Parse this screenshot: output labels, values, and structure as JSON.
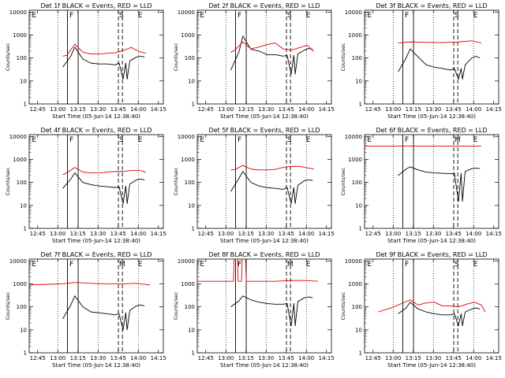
{
  "page": {
    "background": "#ffffff"
  },
  "colors": {
    "events": "#000000",
    "lld": "#e00000",
    "axis": "#000000"
  },
  "chart_data": [
    {
      "type": "line",
      "title": "Det 1f BLACK = Events, RED = LLD",
      "xlabel": "Start Time (05-Jun-14 12:38:40)",
      "ylabel": "Counts/sec",
      "xticks": [
        "12:45",
        "13:00",
        "13:15",
        "13:30",
        "13:45",
        "14:00",
        "14:15"
      ],
      "yticks": [
        "1",
        "10",
        "100",
        "1000",
        "10000"
      ],
      "yscale": "log",
      "ylim": [
        1,
        12000
      ],
      "flags": [
        "E",
        "F",
        "S",
        "E"
      ],
      "series": [
        {
          "color": "#000000",
          "x": [
            25,
            31,
            34,
            40,
            46,
            52,
            58,
            64,
            67,
            70,
            72,
            73,
            75,
            80,
            83,
            86,
            87
          ],
          "y": [
            40,
            120,
            300,
            90,
            60,
            55,
            55,
            50,
            60,
            12,
            60,
            12,
            75,
            110,
            120,
            110,
            null
          ]
        },
        {
          "color": "#e00000",
          "x": [
            25,
            28,
            34,
            40,
            46,
            52,
            58,
            64,
            70,
            76,
            82,
            87
          ],
          "y": [
            120,
            130,
            400,
            180,
            150,
            150,
            160,
            170,
            210,
            290,
            190,
            160
          ]
        }
      ]
    },
    {
      "type": "line",
      "title": "Det 2f BLACK = Events, RED = LLD",
      "xlabel": "Start Time (05-Jun-14 12:38:40)",
      "ylabel": "Counts/sec",
      "xticks": [
        "12:45",
        "13:00",
        "13:15",
        "13:30",
        "13:45",
        "14:00",
        "14:15"
      ],
      "yticks": [
        "1",
        "10",
        "100",
        "1000",
        "10000"
      ],
      "yscale": "log",
      "ylim": [
        1,
        12000
      ],
      "flags": [
        "E",
        "F",
        "S",
        "E"
      ],
      "series": [
        {
          "color": "#000000",
          "x": [
            25,
            31,
            34,
            40,
            46,
            52,
            58,
            64,
            67,
            70,
            72,
            73,
            75,
            80,
            83,
            86,
            87
          ],
          "y": [
            30,
            180,
            900,
            240,
            200,
            140,
            140,
            120,
            130,
            20,
            130,
            20,
            150,
            220,
            260,
            240,
            null
          ]
        },
        {
          "color": "#e00000",
          "x": [
            25,
            28,
            34,
            40,
            46,
            52,
            58,
            64,
            70,
            76,
            82,
            87
          ],
          "y": [
            180,
            220,
            500,
            250,
            300,
            380,
            450,
            250,
            220,
            280,
            360,
            190
          ]
        }
      ]
    },
    {
      "type": "line",
      "title": "Det 3f BLACK = Events, RED = LLD",
      "xlabel": "Start Time (05-Jun-14 12:38:40)",
      "ylabel": "Counts/sec",
      "xticks": [
        "12:45",
        "13:00",
        "13:15",
        "13:30",
        "13:45",
        "14:00",
        "14:15"
      ],
      "yticks": [
        "1",
        "10",
        "100",
        "1000",
        "10000"
      ],
      "yscale": "log",
      "ylim": [
        1,
        12000
      ],
      "flags": [
        "E",
        "F",
        "S",
        "E"
      ],
      "series": [
        {
          "color": "#000000",
          "x": [
            25,
            31,
            34,
            40,
            46,
            52,
            58,
            64,
            67,
            70,
            72,
            73,
            75,
            80,
            83,
            86,
            87
          ],
          "y": [
            25,
            100,
            250,
            110,
            50,
            40,
            35,
            30,
            35,
            12,
            35,
            12,
            50,
            100,
            120,
            100,
            null
          ]
        },
        {
          "color": "#e00000",
          "x": [
            25,
            34,
            46,
            58,
            70,
            80,
            87
          ],
          "y": [
            450,
            500,
            480,
            470,
            500,
            560,
            450
          ]
        }
      ]
    },
    {
      "type": "line",
      "title": "Det 4f BLACK = Events, RED = LLD",
      "xlabel": "Start Time (05-Jun-14 12:38:40)",
      "ylabel": "Counts/sec",
      "xticks": [
        "12:45",
        "13:00",
        "13:15",
        "13:30",
        "13:45",
        "14:00",
        "14:15"
      ],
      "yticks": [
        "1",
        "10",
        "100",
        "1000",
        "10000"
      ],
      "yscale": "log",
      "ylim": [
        1,
        12000
      ],
      "flags": [
        "E",
        "F",
        "S",
        "E"
      ],
      "series": [
        {
          "color": "#000000",
          "x": [
            25,
            31,
            34,
            40,
            46,
            52,
            58,
            64,
            67,
            70,
            72,
            73,
            75,
            80,
            83,
            86,
            87
          ],
          "y": [
            55,
            140,
            260,
            100,
            80,
            70,
            65,
            60,
            65,
            12,
            70,
            12,
            85,
            130,
            140,
            130,
            null
          ]
        },
        {
          "color": "#e00000",
          "x": [
            25,
            28,
            34,
            40,
            46,
            52,
            58,
            64,
            70,
            76,
            82,
            87
          ],
          "y": [
            220,
            260,
            450,
            280,
            260,
            260,
            280,
            300,
            300,
            330,
            340,
            280
          ]
        }
      ]
    },
    {
      "type": "line",
      "title": "Det 5f BLACK = Events, RED = LLD",
      "xlabel": "Start Time (05-Jun-14 12:38:40)",
      "ylabel": "Counts/sec",
      "xticks": [
        "12:45",
        "13:00",
        "13:15",
        "13:30",
        "13:45",
        "14:00",
        "14:15"
      ],
      "yticks": [
        "1",
        "10",
        "100",
        "1000",
        "10000"
      ],
      "yscale": "log",
      "ylim": [
        1,
        12000
      ],
      "flags": [
        "E",
        "F",
        "S",
        "E"
      ],
      "series": [
        {
          "color": "#000000",
          "x": [
            25,
            31,
            34,
            40,
            46,
            52,
            58,
            64,
            67,
            70,
            72,
            73,
            75,
            80,
            83,
            86,
            87
          ],
          "y": [
            40,
            150,
            300,
            100,
            70,
            60,
            55,
            50,
            60,
            12,
            60,
            12,
            75,
            120,
            130,
            120,
            null
          ]
        },
        {
          "color": "#e00000",
          "x": [
            25,
            28,
            34,
            40,
            46,
            52,
            58,
            64,
            70,
            76,
            82,
            87
          ],
          "y": [
            350,
            360,
            550,
            380,
            350,
            350,
            370,
            450,
            500,
            500,
            430,
            380
          ]
        }
      ]
    },
    {
      "type": "line",
      "title": "Det 6f BLACK = Events, RED = LLD",
      "xlabel": "Start Time (05-Jun-14 12:38:40)",
      "ylabel": "Counts/sec",
      "xticks": [
        "12:45",
        "13:00",
        "13:15",
        "13:30",
        "13:45",
        "14:00",
        "14:15"
      ],
      "yticks": [
        "1",
        "10",
        "100",
        "1000",
        "10000"
      ],
      "yscale": "log",
      "ylim": [
        1,
        12000
      ],
      "flags": [
        "E",
        "F",
        "M",
        "E"
      ],
      "series": [
        {
          "color": "#000000",
          "x": [
            25,
            31,
            34,
            40,
            46,
            52,
            58,
            64,
            67,
            70,
            72,
            73,
            75,
            80,
            83,
            86,
            87
          ],
          "y": [
            200,
            380,
            480,
            350,
            280,
            260,
            250,
            240,
            250,
            15,
            250,
            15,
            300,
            400,
            420,
            400,
            null
          ]
        },
        {
          "color": "#e00000",
          "x": [
            0,
            87
          ],
          "y": [
            3800,
            3800
          ]
        }
      ]
    },
    {
      "type": "line",
      "title": "Det 7f BLACK = Events, RED = LLD",
      "xlabel": "Start Time (05-Jun-14 12:38:40)",
      "ylabel": "Counts/sec",
      "xticks": [
        "12:45",
        "13:00",
        "13:15",
        "13:30",
        "13:45",
        "14:00",
        "14:15"
      ],
      "yticks": [
        "1",
        "10",
        "100",
        "1000",
        "10000"
      ],
      "yscale": "log",
      "ylim": [
        1,
        12000
      ],
      "flags": [
        "E",
        "F",
        "M",
        "E"
      ],
      "series": [
        {
          "color": "#000000",
          "x": [
            25,
            31,
            34,
            40,
            46,
            52,
            58,
            64,
            67,
            70,
            72,
            73,
            75,
            80,
            83,
            86,
            87
          ],
          "y": [
            30,
            120,
            300,
            100,
            60,
            55,
            50,
            45,
            50,
            10,
            55,
            10,
            70,
            110,
            120,
            110,
            null
          ]
        },
        {
          "color": "#e00000",
          "x": [
            0,
            12,
            25,
            34,
            46,
            58,
            70,
            80,
            90
          ],
          "y": [
            900,
            950,
            1000,
            1150,
            1050,
            1000,
            1000,
            1050,
            900
          ]
        }
      ]
    },
    {
      "type": "line",
      "title": "Det 8f BLACK = Events, RED = LLD",
      "xlabel": "Start Time (05-Jun-14 12:38:40)",
      "ylabel": "Counts/sec",
      "xticks": [
        "12:45",
        "13:00",
        "13:15",
        "13:30",
        "13:45",
        "14:00",
        "14:15"
      ],
      "yticks": [
        "1",
        "10",
        "100",
        "1000",
        "10000"
      ],
      "yscale": "log",
      "ylim": [
        1,
        12000
      ],
      "flags": [
        "E",
        "F",
        "M",
        "E"
      ],
      "series": [
        {
          "color": "#000000",
          "x": [
            25,
            31,
            34,
            40,
            46,
            52,
            58,
            64,
            67,
            70,
            72,
            73,
            75,
            80,
            83,
            86,
            87
          ],
          "y": [
            100,
            180,
            300,
            200,
            160,
            140,
            130,
            130,
            140,
            15,
            140,
            15,
            170,
            250,
            270,
            250,
            null
          ]
        },
        {
          "color": "#e00000",
          "x": [
            0,
            25,
            27,
            27.5,
            30,
            30.5,
            33,
            33.5,
            36,
            36.5,
            46,
            58,
            70,
            80,
            90
          ],
          "y": [
            1300,
            1300,
            1300,
            12000,
            12000,
            1300,
            1300,
            12000,
            12000,
            1300,
            1300,
            1300,
            1400,
            1400,
            1300
          ]
        }
      ]
    },
    {
      "type": "line",
      "title": "Det 9f BLACK = Events, RED = LLD",
      "xlabel": "Start Time (05-Jun-14 12:38:40)",
      "ylabel": "Counts/sec",
      "xticks": [
        "12:45",
        "13:00",
        "13:15",
        "13:30",
        "13:45",
        "14:00",
        "14:15"
      ],
      "yticks": [
        "1",
        "10",
        "100",
        "1000",
        "10000"
      ],
      "yscale": "log",
      "ylim": [
        1,
        12000
      ],
      "flags": [
        "E",
        "F",
        "S",
        "E"
      ],
      "series": [
        {
          "color": "#000000",
          "x": [
            25,
            31,
            34,
            40,
            46,
            52,
            58,
            64,
            67,
            70,
            72,
            73,
            75,
            80,
            83,
            86,
            87
          ],
          "y": [
            50,
            90,
            160,
            80,
            60,
            50,
            45,
            45,
            50,
            15,
            50,
            15,
            60,
            80,
            90,
            80,
            null
          ]
        },
        {
          "color": "#e00000",
          "x": [
            10,
            20,
            25,
            34,
            40,
            46,
            52,
            58,
            64,
            70,
            76,
            82,
            87,
            90
          ],
          "y": [
            60,
            90,
            120,
            200,
            120,
            150,
            160,
            110,
            110,
            100,
            130,
            160,
            120,
            60
          ]
        }
      ]
    }
  ]
}
